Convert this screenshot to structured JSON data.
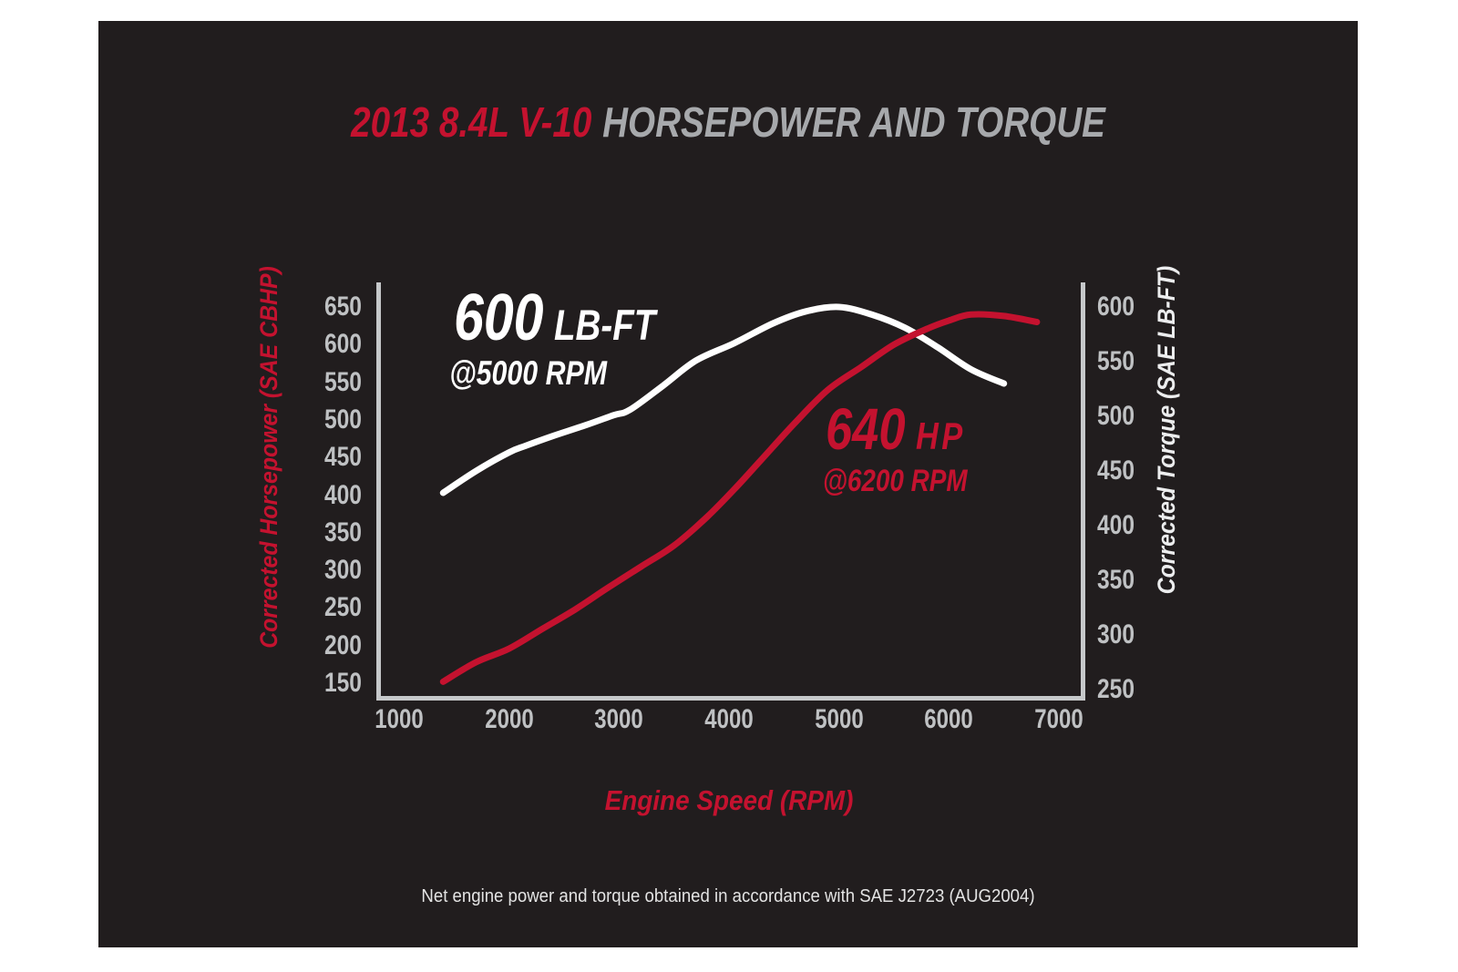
{
  "header": {
    "title_red": "2013 8.4L V-10",
    "title_gray": "HORSEPOWER AND TORQUE"
  },
  "colors": {
    "accent_red": "#c4122f",
    "title_gray": "#a7a9ac",
    "axis_gray": "#c6c8ca",
    "tick_gray": "#bfc1c3",
    "curve_white": "#ffffff",
    "panel_background": "#211d1e",
    "page_background": "#ffffff"
  },
  "annotations": {
    "torque": {
      "value": "600",
      "unit": "LB-FT",
      "at": "@5000 RPM"
    },
    "power": {
      "value": "640",
      "unit": "HP",
      "at": "@6200 RPM"
    }
  },
  "footer": {
    "note": "Net engine power and torque obtained in accordance with SAE J2723 (AUG2004)"
  },
  "chart_data": {
    "type": "line",
    "title": "2013 8.4L V-10 HORSEPOWER AND TORQUE",
    "grid": false,
    "legend_position": "inline-annotations",
    "x_axis": {
      "label": "Engine Speed (RPM)",
      "range": [
        1000,
        7000
      ],
      "ticks": [
        1000,
        2000,
        3000,
        4000,
        5000,
        6000,
        7000
      ]
    },
    "left_axis": {
      "label": "Corrected Horsepower (SAE CBHP)",
      "range": [
        150,
        650
      ],
      "ticks": [
        650,
        600,
        550,
        500,
        450,
        400,
        350,
        300,
        250,
        200,
        150
      ]
    },
    "right_axis": {
      "label": "Corrected Torque (SAE LB-FT)",
      "range": [
        250,
        600
      ],
      "ticks": [
        600,
        550,
        500,
        450,
        400,
        350,
        300,
        250
      ]
    },
    "series": [
      {
        "name": "corrected-torque",
        "axis": "right",
        "color": "#ffffff",
        "peak": {
          "value": 600,
          "unit": "LB-FT",
          "rpm": 5000
        },
        "points": [
          [
            1400,
            430
          ],
          [
            1700,
            450
          ],
          [
            2000,
            467
          ],
          [
            2150,
            473
          ],
          [
            2400,
            482
          ],
          [
            2700,
            492
          ],
          [
            2950,
            501
          ],
          [
            3100,
            506
          ],
          [
            3400,
            528
          ],
          [
            3700,
            551
          ],
          [
            4050,
            567
          ],
          [
            4400,
            585
          ],
          [
            4700,
            596
          ],
          [
            5000,
            600
          ],
          [
            5300,
            593
          ],
          [
            5600,
            581
          ],
          [
            5900,
            563
          ],
          [
            6200,
            543
          ],
          [
            6500,
            530
          ]
        ]
      },
      {
        "name": "corrected-horsepower",
        "axis": "left",
        "color": "#c4122f",
        "peak": {
          "value": 640,
          "unit": "HP",
          "rpm": 6200
        },
        "points": [
          [
            1400,
            152
          ],
          [
            1700,
            178
          ],
          [
            2000,
            196
          ],
          [
            2300,
            222
          ],
          [
            2600,
            248
          ],
          [
            2900,
            277
          ],
          [
            3200,
            305
          ],
          [
            3500,
            333
          ],
          [
            3800,
            371
          ],
          [
            4050,
            408
          ],
          [
            4300,
            448
          ],
          [
            4600,
            496
          ],
          [
            4900,
            540
          ],
          [
            5200,
            570
          ],
          [
            5500,
            600
          ],
          [
            5800,
            621
          ],
          [
            6000,
            632
          ],
          [
            6200,
            640
          ],
          [
            6500,
            638
          ],
          [
            6800,
            630
          ]
        ]
      }
    ]
  }
}
